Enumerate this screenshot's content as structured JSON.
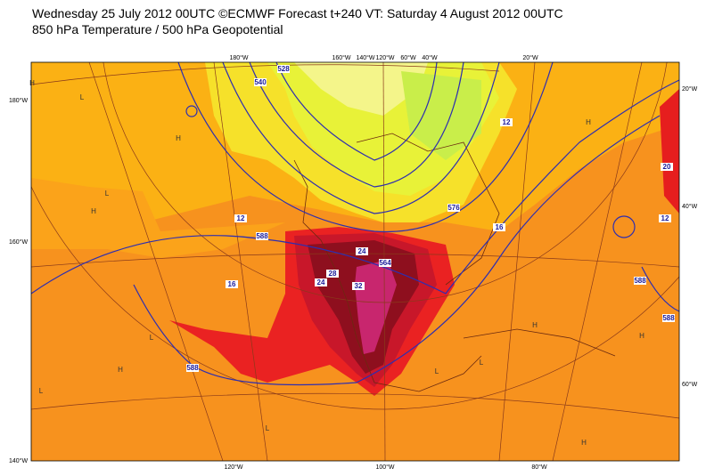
{
  "header": {
    "title": "Wednesday 25 July 2012 00UTC ©ECMWF Forecast t+240 VT: Saturday 4 August 2012 00UTC",
    "subtitle": "850 hPa Temperature / 500 hPa Geopotential"
  },
  "map": {
    "top_labels": [
      "180°W",
      "160°W",
      "140°W",
      "120°W",
      "60°W",
      "40°W",
      "20°W"
    ],
    "left_labels": [
      "180°W",
      "160°W",
      "140°W"
    ],
    "right_labels": [
      "20°W",
      "40°W",
      "60°W"
    ],
    "bottom_labels": [
      "120°W",
      "100°W",
      "80°W"
    ],
    "contour_labels": [
      "12",
      "12",
      "12",
      "16",
      "16",
      "20",
      "24",
      "24",
      "28",
      "32",
      "588",
      "588",
      "588",
      "588",
      "576",
      "564",
      "528",
      "540"
    ],
    "pressure_marks": [
      "H",
      "L",
      "H",
      "L",
      "H",
      "L",
      "H",
      "L",
      "H",
      "H",
      "L",
      "H",
      "L",
      "H",
      "L"
    ]
  }
}
